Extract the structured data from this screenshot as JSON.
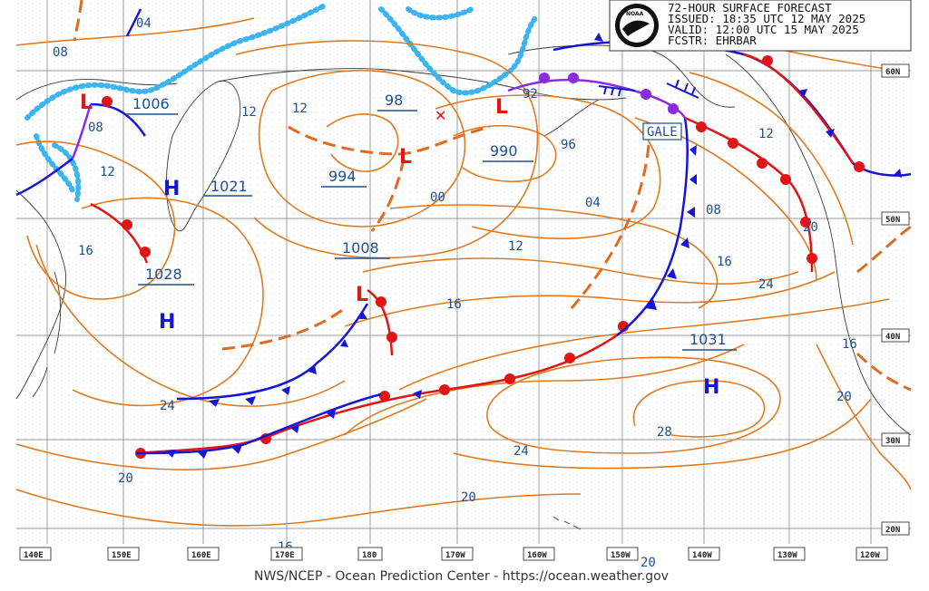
{
  "header": {
    "title": "72-HOUR SURFACE FORECAST",
    "issued": "ISSUED: 18:35 UTC 12 MAY 2025",
    "valid": "VALID:  12:00 UTC 15 MAY 2025",
    "forecaster": "FCSTR:  EHRBAR",
    "logo_text": "NOAA"
  },
  "footer": "NWS/NCEP - Ocean Prediction Center - https://ocean.weather.gov",
  "longitude_labels": [
    "140E",
    "150E",
    "160E",
    "170E",
    "180",
    "170W",
    "160W",
    "150W",
    "140W",
    "130W",
    "120W"
  ],
  "latitude_labels": [
    "60N",
    "50N",
    "40N",
    "30N",
    "20N"
  ],
  "pressure_centers": [
    {
      "type": "H",
      "value": "1021"
    },
    {
      "type": "H",
      "value": "1028"
    },
    {
      "type": "H",
      "value": "1031"
    },
    {
      "type": "L",
      "value": "1006"
    },
    {
      "type": "L",
      "value": "994"
    },
    {
      "type": "L",
      "value": "990"
    },
    {
      "type": "L",
      "value": "1008"
    },
    {
      "type": "L",
      "value": "98"
    }
  ],
  "warning_label": "GALE",
  "isobar_labels": [
    "04",
    "08",
    "08",
    "12",
    "16",
    "12",
    "12",
    "96",
    "92",
    "00",
    "04",
    "08",
    "12",
    "16",
    "20",
    "24",
    "16",
    "20",
    "24",
    "28",
    "24",
    "20",
    "20",
    "16",
    "16",
    "20",
    "12",
    "24",
    "16"
  ],
  "colors": {
    "isobar": "#e07a1f",
    "cold_front": "#1515d8",
    "warm_front": "#e01515",
    "occluded_front": "#8a2be2",
    "ice_edge": "#3cb4ef",
    "trough": "#e06a1f",
    "text_blue": "#1f4f8f"
  }
}
